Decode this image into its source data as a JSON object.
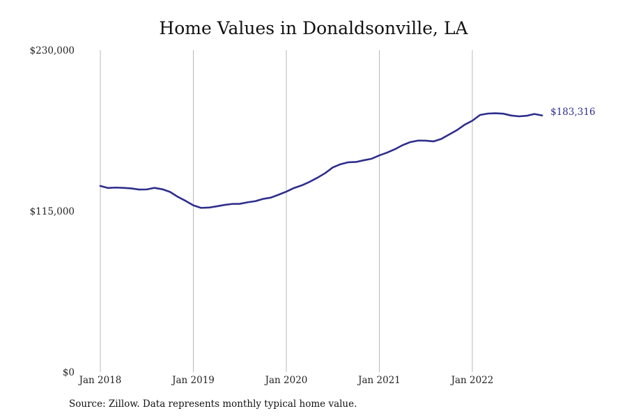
{
  "chart_data": {
    "type": "line",
    "title": "Home Values in Donaldsonville, LA",
    "xlabel": "",
    "ylabel": "",
    "ylim": [
      0,
      230000
    ],
    "y_ticks": [
      {
        "value": 230000,
        "label": "$230,000"
      },
      {
        "value": 115000,
        "label": "$115,000"
      },
      {
        "value": 0,
        "label": "$0"
      }
    ],
    "x_ticks": [
      {
        "value": 2018.0,
        "label": "Jan 2018"
      },
      {
        "value": 2019.0,
        "label": "Jan 2019"
      },
      {
        "value": 2020.0,
        "label": "Jan 2020"
      },
      {
        "value": 2021.0,
        "label": "Jan 2021"
      },
      {
        "value": 2022.0,
        "label": "Jan 2022"
      }
    ],
    "xlim": [
      2018.0,
      2022.75
    ],
    "grid": "vertical",
    "line_color": "#2e2e8c",
    "end_label": "$183,316",
    "series": [
      {
        "x": [
          2018.0,
          2018.083,
          2018.167,
          2018.25,
          2018.333,
          2018.417,
          2018.5,
          2018.583,
          2018.667,
          2018.75,
          2018.833,
          2018.917,
          2019.0,
          2019.083,
          2019.167,
          2019.25,
          2019.333,
          2019.417,
          2019.5,
          2019.583,
          2019.667,
          2019.75,
          2019.833,
          2019.917,
          2020.0,
          2020.083,
          2020.167,
          2020.25,
          2020.333,
          2020.417,
          2020.5,
          2020.583,
          2020.667,
          2020.75,
          2020.833,
          2020.917,
          2021.0,
          2021.083,
          2021.167,
          2021.25,
          2021.333,
          2021.417,
          2021.5,
          2021.583,
          2021.667,
          2021.75,
          2021.833,
          2021.917,
          2022.0,
          2022.083,
          2022.167,
          2022.25,
          2022.333,
          2022.417,
          2022.5,
          2022.583,
          2022.667,
          2022.75
        ],
        "values": [
          133000,
          131500,
          131800,
          131600,
          131200,
          130400,
          130500,
          131600,
          130600,
          128700,
          125200,
          122300,
          119100,
          117300,
          117500,
          118400,
          119400,
          120100,
          120200,
          121300,
          122100,
          123700,
          124600,
          126700,
          128900,
          131500,
          133400,
          135900,
          138800,
          142100,
          146200,
          148500,
          149900,
          150100,
          151300,
          152400,
          154800,
          156800,
          159200,
          162100,
          164300,
          165400,
          165300,
          164800,
          166600,
          169700,
          172800,
          176700,
          179600,
          183700,
          184700,
          184900,
          184600,
          183300,
          182700,
          183100,
          184400,
          183316
        ]
      }
    ]
  },
  "source_note": "Source: Zillow. Data represents monthly typical home value."
}
